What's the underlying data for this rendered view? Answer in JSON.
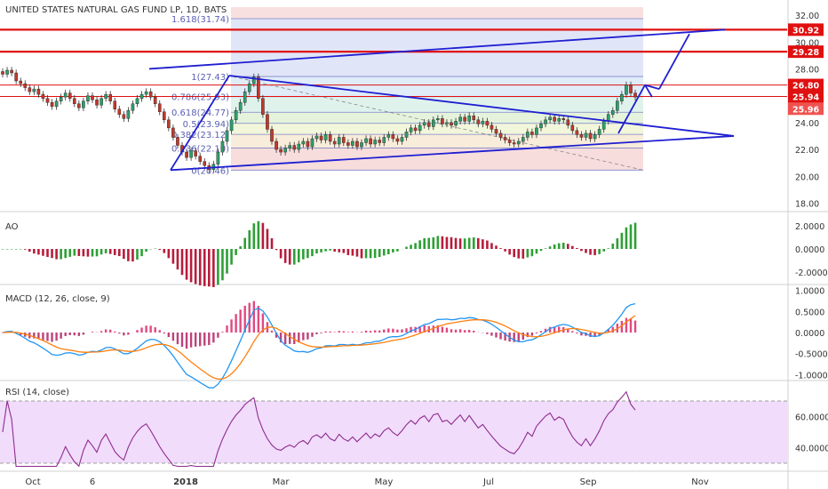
{
  "title": "UNITED STATES NATURAL GAS FUND LP, 1D, BATS",
  "colors": {
    "up": "#26a69a",
    "down": "#ef5350",
    "pattern": "#1f1fd1",
    "level": "#e01010",
    "macd": "#2196f3",
    "signal": "#ff7f0e",
    "rsi": "#8e2c8e",
    "rsi_band": "#f1dcfb",
    "ao_up": "#2e9f36",
    "ao_down": "#b71c3c"
  },
  "chart_data": [
    {
      "type": "candlestick",
      "panel": "price",
      "title": "UNITED STATES NATURAL GAS FUND LP, 1D, BATS",
      "x_ticks": [
        "Oct",
        "6",
        "2018",
        "Mar",
        "May",
        "Jul",
        "Sep",
        "Nov"
      ],
      "y_ticks": [
        "18.00",
        "20.00",
        "22.00",
        "24.00",
        "26.00",
        "28.00",
        "30.00",
        "32.00"
      ],
      "ylim": [
        17.5,
        32.6
      ],
      "price_labels": [
        {
          "text": "30.92",
          "value": 30.92
        },
        {
          "text": "29.28",
          "value": 29.28
        },
        {
          "text": "26.80",
          "value": 26.8
        },
        {
          "text": "25.94",
          "value": 25.94
        },
        {
          "text": "25.96",
          "value": 25.96
        }
      ],
      "horizontal_levels": [
        30.92,
        29.28,
        26.8,
        25.94
      ],
      "fibonacci": [
        {
          "text": "1.618(31.74)",
          "value": 31.74
        },
        {
          "text": "1(27.43)",
          "value": 27.43
        },
        {
          "text": "0.786(25.93)",
          "value": 25.93
        },
        {
          "text": "0.618(24.77)",
          "value": 24.77
        },
        {
          "text": "0.5(23.94)",
          "value": 23.94
        },
        {
          "text": "0.382(23.12)",
          "value": 23.12
        },
        {
          "text": "0.236(22.10)",
          "value": 22.1
        },
        {
          "text": "0(20.46)",
          "value": 20.46
        }
      ],
      "closes": [
        27.6,
        27.9,
        27.7,
        27.1,
        26.9,
        26.6,
        26.3,
        26.5,
        26.1,
        25.8,
        25.5,
        25.2,
        25.6,
        25.9,
        26.2,
        25.8,
        25.4,
        25.1,
        25.6,
        26.0,
        25.7,
        25.3,
        25.8,
        26.1,
        25.6,
        25.0,
        24.6,
        24.3,
        24.9,
        25.4,
        25.8,
        26.1,
        26.3,
        25.9,
        25.4,
        24.8,
        24.2,
        23.6,
        22.9,
        22.3,
        21.8,
        21.4,
        21.9,
        21.5,
        21.1,
        20.8,
        20.5,
        20.9,
        21.8,
        22.6,
        23.4,
        24.2,
        24.9,
        25.5,
        26.3,
        26.9,
        27.4,
        25.8,
        24.6,
        23.5,
        22.6,
        22.0,
        21.8,
        22.1,
        22.3,
        22.0,
        22.4,
        22.6,
        22.2,
        22.8,
        23.0,
        22.7,
        23.1,
        22.6,
        22.4,
        22.9,
        22.5,
        22.3,
        22.6,
        22.2,
        22.5,
        22.8,
        22.4,
        22.7,
        22.5,
        22.9,
        23.1,
        22.8,
        22.6,
        22.9,
        23.3,
        23.6,
        23.4,
        23.8,
        24.0,
        23.7,
        24.2,
        24.3,
        23.9,
        24.0,
        23.8,
        24.1,
        24.4,
        24.1,
        24.5,
        24.2,
        23.9,
        24.1,
        23.8,
        23.5,
        23.2,
        22.9,
        22.7,
        22.5,
        22.4,
        22.6,
        22.9,
        23.3,
        23.1,
        23.6,
        23.9,
        24.2,
        24.4,
        24.1,
        24.3,
        24.2,
        23.8,
        23.4,
        23.1,
        22.9,
        23.2,
        22.8,
        23.1,
        23.5,
        24.1,
        24.6,
        24.9,
        25.6,
        26.1,
        26.8,
        26.2,
        25.9
      ]
    },
    {
      "type": "bar",
      "panel": "AO",
      "title": "AO",
      "y_ticks": [
        "2.0000",
        "0.0000",
        "-2.0000"
      ],
      "ylim": [
        -2.9,
        2.9
      ]
    },
    {
      "type": "line",
      "panel": "MACD",
      "title": "MACD (12, 26, close, 9)",
      "y_ticks": [
        "1.0000",
        "0.5000",
        "0.0000",
        "-0.5000",
        "-1.0000"
      ],
      "ylim": [
        -1.1,
        1.1
      ]
    },
    {
      "type": "line",
      "panel": "RSI",
      "title": "RSI (14, close)",
      "y_ticks": [
        "60.0000",
        "40.0000"
      ],
      "ylim": [
        26,
        82
      ],
      "bands": [
        30,
        70
      ]
    }
  ]
}
